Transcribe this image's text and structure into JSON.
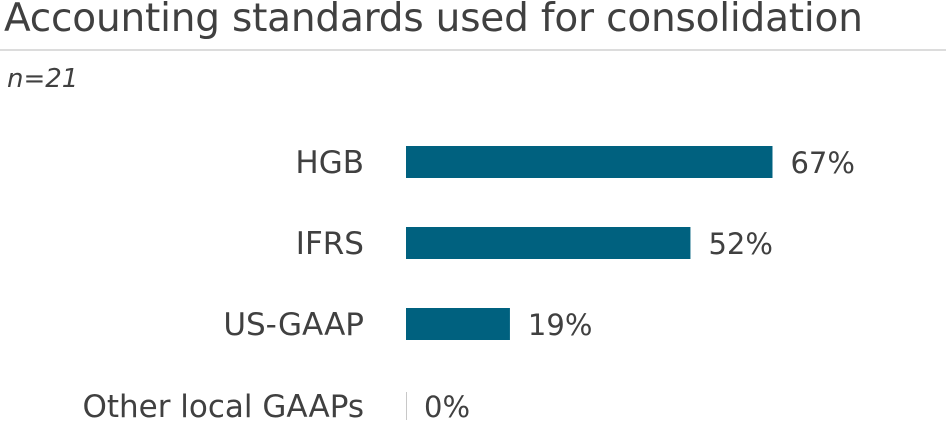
{
  "header": {
    "title": "Accounting standards used for consolidation",
    "subtitle": "n=21"
  },
  "chart_data": {
    "type": "bar",
    "orientation": "horizontal",
    "categories": [
      "HGB",
      "IFRS",
      "US-GAAP",
      "Other local GAAPs"
    ],
    "values": [
      67,
      52,
      19,
      0
    ],
    "value_labels": [
      "67%",
      "52%",
      "19%",
      "0%"
    ],
    "unit": "%",
    "xlim": [
      0,
      100
    ],
    "grid": false,
    "legend": "none",
    "colors": {
      "bar": "#00617f"
    }
  }
}
